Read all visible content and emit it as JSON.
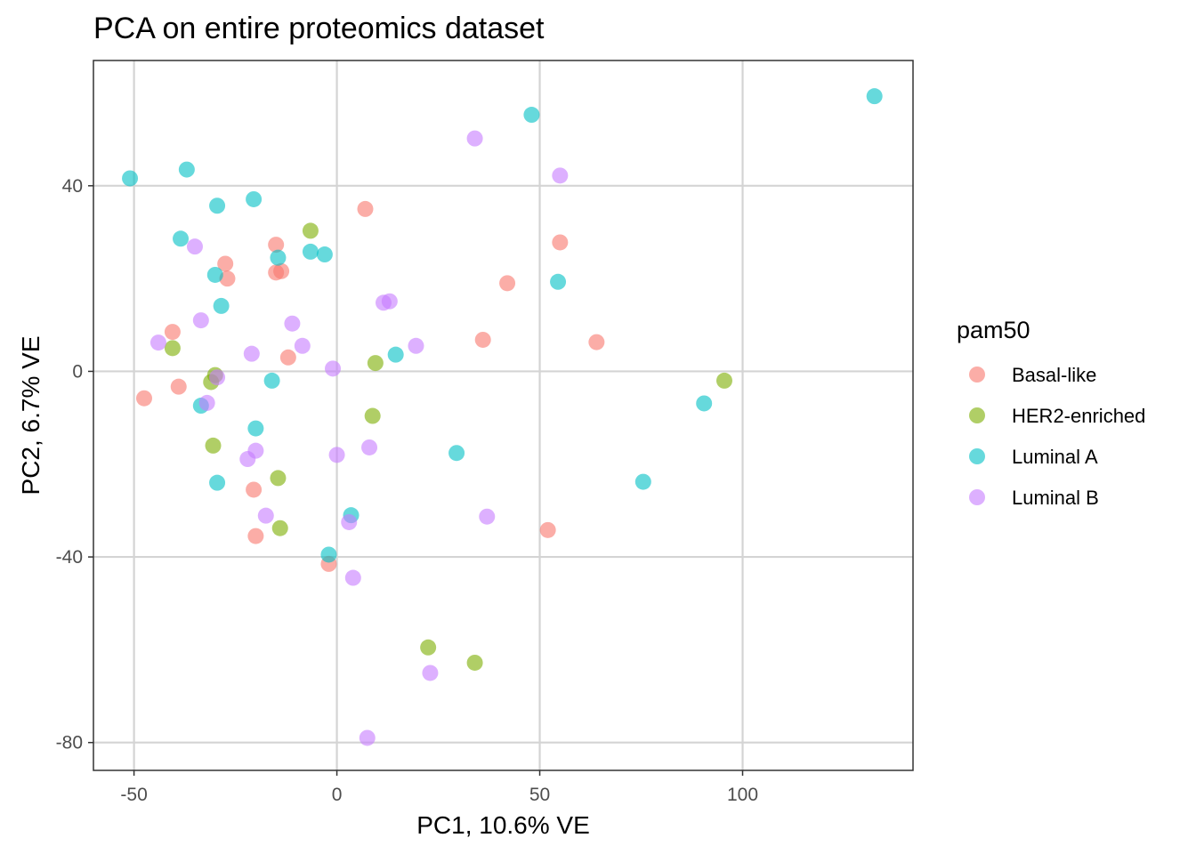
{
  "chart_data": {
    "type": "scatter",
    "title": "PCA on entire proteomics dataset",
    "xlabel": "PC1,  10.6% VE",
    "ylabel": "PC2,  6.7% VE",
    "xlim": [
      -60,
      142
    ],
    "ylim": [
      -86,
      67
    ],
    "x_ticks": [
      -50,
      0,
      50,
      100
    ],
    "x_tick_labels": [
      "-50",
      "0",
      "50",
      "100"
    ],
    "y_ticks": [
      40,
      0,
      -40,
      -80
    ],
    "y_tick_labels": [
      "40",
      "0",
      "-40",
      "-80"
    ],
    "grid": true,
    "legend": {
      "title": "pam50",
      "position": "right",
      "entries": [
        "Basal-like",
        "HER2-enriched",
        "Luminal A",
        "Luminal B"
      ]
    },
    "series": [
      {
        "name": "Basal-like",
        "color": "#F8766D",
        "points": [
          [
            7,
            35
          ],
          [
            -15,
            27.3
          ],
          [
            -15,
            21.3
          ],
          [
            -13.7,
            21.6
          ],
          [
            -27.5,
            23.2
          ],
          [
            -27,
            20
          ],
          [
            -12,
            3
          ],
          [
            -40.5,
            8.5
          ],
          [
            -39,
            -3.3
          ],
          [
            -47.5,
            -5.8
          ],
          [
            42,
            19
          ],
          [
            55,
            27.8
          ],
          [
            36,
            6.8
          ],
          [
            64,
            6.3
          ],
          [
            -20.5,
            -25.5
          ],
          [
            -20,
            -35.5
          ],
          [
            -2,
            -41.5
          ],
          [
            52,
            -34.2
          ]
        ]
      },
      {
        "name": "HER2-enriched",
        "color": "#7CAE00",
        "points": [
          [
            -6.5,
            30.3
          ],
          [
            -40.5,
            5
          ],
          [
            9.5,
            1.8
          ],
          [
            -30,
            -0.8
          ],
          [
            -31,
            -2.3
          ],
          [
            8.8,
            -9.6
          ],
          [
            -30.5,
            -16
          ],
          [
            -14.5,
            -23
          ],
          [
            -14,
            -33.8
          ],
          [
            95.5,
            -2
          ],
          [
            22.5,
            -59.5
          ],
          [
            34,
            -62.8
          ]
        ]
      },
      {
        "name": "Luminal A",
        "color": "#00BFC4",
        "points": [
          [
            -51,
            41.6
          ],
          [
            -37,
            43.5
          ],
          [
            -29.5,
            35.7
          ],
          [
            -20.5,
            37.1
          ],
          [
            -38.5,
            28.6
          ],
          [
            -30,
            20.8
          ],
          [
            -14.5,
            24.5
          ],
          [
            -6.5,
            25.8
          ],
          [
            -3,
            25.2
          ],
          [
            -28.5,
            14.1
          ],
          [
            14.5,
            3.6
          ],
          [
            -16,
            -2
          ],
          [
            -33.5,
            -7.4
          ],
          [
            -20,
            -12.3
          ],
          [
            -29.5,
            -24
          ],
          [
            29.5,
            -17.6
          ],
          [
            3.5,
            -31
          ],
          [
            -2,
            -39.5
          ],
          [
            48,
            55.3
          ],
          [
            54.5,
            19.3
          ],
          [
            90.5,
            -6.9
          ],
          [
            75.5,
            -23.8
          ],
          [
            132.5,
            59.3
          ]
        ]
      },
      {
        "name": "Luminal B",
        "color": "#C77CFF",
        "points": [
          [
            34,
            50.2
          ],
          [
            55,
            42.2
          ],
          [
            -35,
            26.9
          ],
          [
            11.5,
            14.8
          ],
          [
            13,
            15.1
          ],
          [
            -33.5,
            11
          ],
          [
            -11,
            10.3
          ],
          [
            -8.5,
            5.5
          ],
          [
            19.5,
            5.5
          ],
          [
            -44,
            6.2
          ],
          [
            -21,
            3.8
          ],
          [
            -1,
            0.6
          ],
          [
            -29.5,
            -1.3
          ],
          [
            -32,
            -6.8
          ],
          [
            8,
            -16.4
          ],
          [
            -20,
            -17.1
          ],
          [
            -22,
            -18.9
          ],
          [
            0,
            -18
          ],
          [
            -17.5,
            -31.1
          ],
          [
            3,
            -32.5
          ],
          [
            37,
            -31.3
          ],
          [
            4,
            -44.5
          ],
          [
            23,
            -65
          ],
          [
            7.5,
            -79
          ]
        ]
      }
    ]
  }
}
